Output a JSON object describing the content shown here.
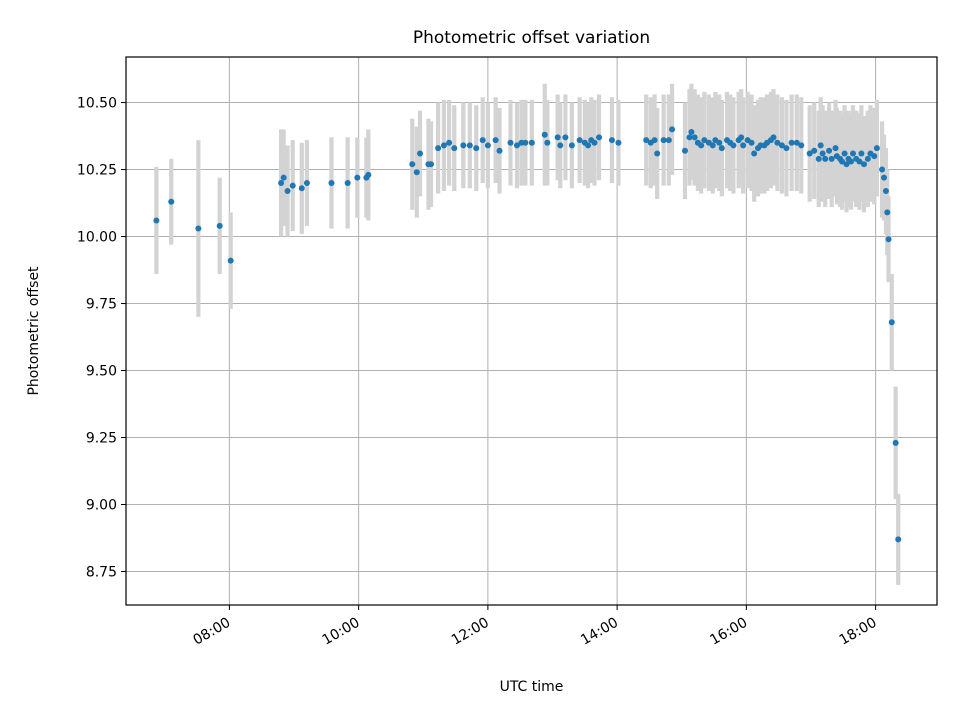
{
  "chart_data": {
    "type": "scatter",
    "title": "Photometric offset variation",
    "xlabel": "UTC time",
    "ylabel": "Photometric offset",
    "x_unit": "hours (UTC)",
    "xlim": [
      6.4,
      18.95
    ],
    "ylim": [
      8.625,
      10.67
    ],
    "xticks": [
      8,
      10,
      12,
      14,
      16,
      18
    ],
    "xtick_labels": [
      "08:00",
      "10:00",
      "12:00",
      "14:00",
      "16:00",
      "18:00"
    ],
    "yticks": [
      8.75,
      9.0,
      9.25,
      9.5,
      9.75,
      10.0,
      10.25,
      10.5
    ],
    "ytick_labels": [
      "8.75",
      "9.00",
      "9.25",
      "9.50",
      "9.75",
      "10.00",
      "10.25",
      "10.50"
    ],
    "grid": true,
    "colors": {
      "point": "#1f77b4",
      "errorbar": "#d3d3d3",
      "grid": "#b0b0b0"
    },
    "series": [
      {
        "x": [
          6.87,
          7.1,
          7.52,
          7.85,
          8.02,
          8.8,
          8.84,
          8.9,
          8.98,
          9.12,
          9.2,
          9.58,
          9.83,
          9.98,
          10.12,
          10.15,
          10.83,
          10.9,
          10.95,
          11.08,
          11.12,
          11.23,
          11.32,
          11.4,
          11.48,
          11.62,
          11.72,
          11.82,
          11.92,
          12.0,
          12.12,
          12.18,
          12.35,
          12.45,
          12.52,
          12.58,
          12.68,
          12.88,
          12.92,
          13.08,
          13.12,
          13.2,
          13.3,
          13.42,
          13.5,
          13.55,
          13.6,
          13.65,
          13.72,
          13.92,
          14.02,
          14.45,
          14.52,
          14.58,
          14.62,
          14.72,
          14.8,
          14.85,
          15.05,
          15.12,
          15.15,
          15.2,
          15.25,
          15.3,
          15.35,
          15.42,
          15.48,
          15.52,
          15.58,
          15.62,
          15.7,
          15.75,
          15.8,
          15.88,
          15.92,
          15.95,
          16.02,
          16.08,
          16.12,
          16.18,
          16.22,
          16.28,
          16.32,
          16.38,
          16.42,
          16.48,
          16.55,
          16.62,
          16.7,
          16.78,
          16.85,
          16.98,
          17.05,
          17.12,
          17.15,
          17.18,
          17.22,
          17.28,
          17.32,
          17.38,
          17.4,
          17.45,
          17.48,
          17.52,
          17.55,
          17.58,
          17.62,
          17.65,
          17.7,
          17.75,
          17.78,
          17.82,
          17.88,
          17.92,
          17.98,
          18.02,
          18.1,
          18.13,
          18.16,
          18.18,
          18.2,
          18.25,
          18.31,
          18.35
        ],
        "y": [
          10.06,
          10.13,
          10.03,
          10.04,
          9.91,
          10.2,
          10.22,
          10.17,
          10.19,
          10.18,
          10.2,
          10.2,
          10.2,
          10.22,
          10.22,
          10.23,
          10.27,
          10.24,
          10.31,
          10.27,
          10.27,
          10.33,
          10.34,
          10.35,
          10.33,
          10.34,
          10.34,
          10.33,
          10.36,
          10.34,
          10.36,
          10.32,
          10.35,
          10.34,
          10.35,
          10.35,
          10.35,
          10.38,
          10.35,
          10.37,
          10.34,
          10.37,
          10.34,
          10.36,
          10.35,
          10.34,
          10.36,
          10.35,
          10.37,
          10.36,
          10.35,
          10.36,
          10.35,
          10.36,
          10.31,
          10.36,
          10.36,
          10.4,
          10.32,
          10.37,
          10.39,
          10.37,
          10.35,
          10.34,
          10.36,
          10.35,
          10.34,
          10.36,
          10.35,
          10.33,
          10.36,
          10.35,
          10.34,
          10.36,
          10.37,
          10.34,
          10.36,
          10.35,
          10.31,
          10.33,
          10.34,
          10.34,
          10.35,
          10.36,
          10.37,
          10.35,
          10.34,
          10.33,
          10.35,
          10.35,
          10.34,
          10.31,
          10.32,
          10.29,
          10.34,
          10.31,
          10.29,
          10.32,
          10.29,
          10.33,
          10.3,
          10.29,
          10.28,
          10.31,
          10.27,
          10.29,
          10.28,
          10.31,
          10.29,
          10.28,
          10.31,
          10.27,
          10.29,
          10.31,
          10.3,
          10.33,
          10.25,
          10.22,
          10.17,
          10.09,
          9.99,
          9.68,
          9.23,
          8.87
        ],
        "yerr": [
          0.2,
          0.16,
          0.33,
          0.18,
          0.18,
          0.2,
          0.18,
          0.17,
          0.17,
          0.17,
          0.16,
          0.17,
          0.17,
          0.15,
          0.15,
          0.17,
          0.17,
          0.17,
          0.16,
          0.17,
          0.16,
          0.17,
          0.17,
          0.16,
          0.16,
          0.16,
          0.16,
          0.16,
          0.16,
          0.16,
          0.16,
          0.16,
          0.16,
          0.16,
          0.16,
          0.16,
          0.16,
          0.19,
          0.16,
          0.16,
          0.16,
          0.16,
          0.16,
          0.16,
          0.16,
          0.16,
          0.16,
          0.16,
          0.16,
          0.16,
          0.16,
          0.17,
          0.17,
          0.17,
          0.17,
          0.17,
          0.17,
          0.17,
          0.18,
          0.18,
          0.18,
          0.18,
          0.18,
          0.18,
          0.18,
          0.18,
          0.18,
          0.18,
          0.18,
          0.18,
          0.18,
          0.18,
          0.18,
          0.18,
          0.18,
          0.18,
          0.18,
          0.18,
          0.18,
          0.18,
          0.18,
          0.18,
          0.18,
          0.18,
          0.18,
          0.18,
          0.18,
          0.18,
          0.18,
          0.18,
          0.18,
          0.18,
          0.18,
          0.18,
          0.18,
          0.18,
          0.18,
          0.18,
          0.18,
          0.18,
          0.18,
          0.18,
          0.18,
          0.18,
          0.18,
          0.18,
          0.18,
          0.18,
          0.18,
          0.18,
          0.18,
          0.18,
          0.18,
          0.18,
          0.18,
          0.18,
          0.18,
          0.16,
          0.16,
          0.16,
          0.16,
          0.18,
          0.21,
          0.17
        ]
      }
    ]
  }
}
